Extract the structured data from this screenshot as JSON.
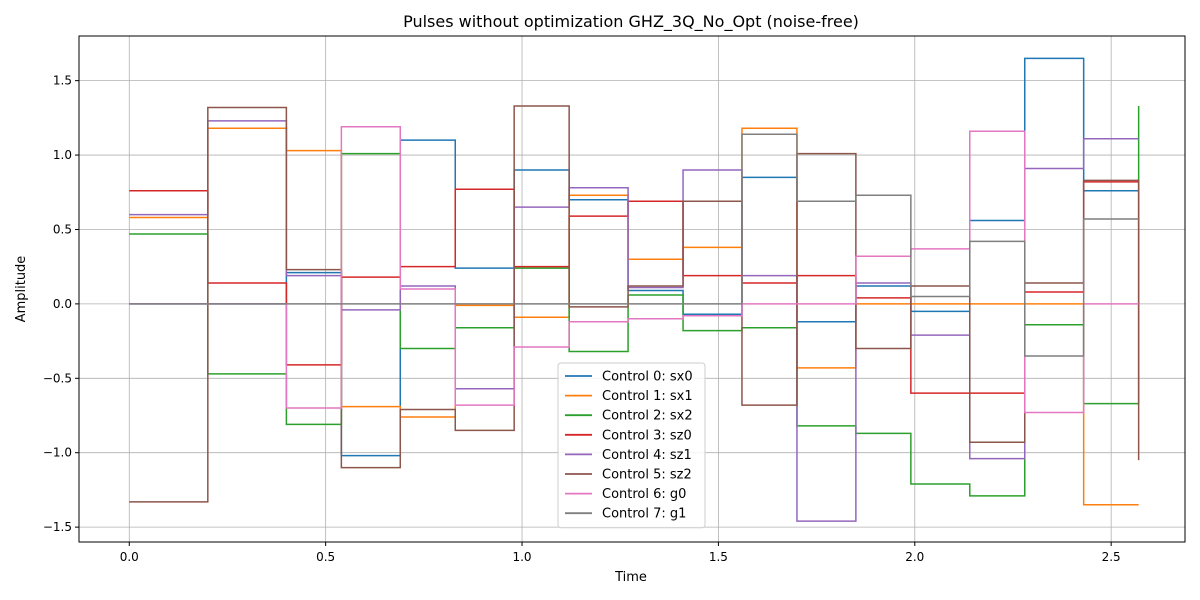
{
  "chart_data": {
    "type": "line",
    "step": "post",
    "title": "Pulses without optimization GHZ_3Q_No_Opt (noise-free)",
    "xlabel": "Time",
    "ylabel": "Amplitude",
    "xlim": [
      -0.128,
      2.688
    ],
    "ylim": [
      -1.6,
      1.8
    ],
    "xticks": [
      0.0,
      0.5,
      1.0,
      1.5,
      2.0,
      2.5
    ],
    "xtick_labels": [
      "0.0",
      "0.5",
      "1.0",
      "1.5",
      "2.0",
      "2.5"
    ],
    "yticks": [
      -1.5,
      -1.0,
      -0.5,
      0.0,
      0.5,
      1.0,
      1.5
    ],
    "ytick_labels": [
      "−1.5",
      "−1.0",
      "−0.5",
      "0.0",
      "0.5",
      "1.0",
      "1.5"
    ],
    "grid": true,
    "legend_position": "bottom-center",
    "x": [
      0.0,
      0.2,
      0.4,
      0.54,
      0.69,
      0.83,
      0.98,
      1.12,
      1.27,
      1.41,
      1.56,
      1.7,
      1.85,
      1.99,
      2.14,
      2.28,
      2.43,
      2.57
    ],
    "series": [
      {
        "name": "Control 0: sx0",
        "color": "#1f77b4",
        "values": [
          0.0,
          0.0,
          0.21,
          -1.02,
          1.1,
          0.24,
          0.9,
          0.7,
          0.09,
          -0.07,
          0.85,
          -0.12,
          0.12,
          -0.05,
          0.56,
          1.65,
          0.76,
          0.76
        ]
      },
      {
        "name": "Control 1: sx1",
        "color": "#ff7f0e",
        "values": [
          0.58,
          1.18,
          1.03,
          -0.69,
          -0.76,
          -0.01,
          -0.09,
          0.73,
          0.3,
          0.38,
          1.18,
          -0.43,
          0.0,
          0.0,
          0.0,
          0.0,
          -1.35,
          -1.35
        ]
      },
      {
        "name": "Control 2: sx2",
        "color": "#2ca02c",
        "values": [
          0.47,
          -0.47,
          -0.81,
          1.01,
          -0.3,
          -0.16,
          0.24,
          -0.32,
          0.06,
          -0.18,
          -0.16,
          -0.82,
          -0.87,
          -1.21,
          -1.29,
          -0.14,
          -0.67,
          1.33
        ]
      },
      {
        "name": "Control 3: sz0",
        "color": "#d62728",
        "values": [
          0.76,
          0.14,
          -0.41,
          0.18,
          0.25,
          0.77,
          0.25,
          0.59,
          0.69,
          0.19,
          0.14,
          0.19,
          0.04,
          -0.6,
          -0.6,
          0.08,
          0.82,
          0.82
        ]
      },
      {
        "name": "Control 4: sz1",
        "color": "#9467bd",
        "values": [
          0.6,
          1.23,
          0.19,
          -0.04,
          0.12,
          -0.57,
          0.65,
          0.78,
          0.11,
          0.9,
          0.19,
          -1.46,
          0.14,
          -0.21,
          -1.04,
          0.91,
          1.11,
          1.11
        ]
      },
      {
        "name": "Control 5: sz2",
        "color": "#8c564b",
        "values": [
          -1.33,
          1.32,
          0.23,
          -1.1,
          -0.71,
          -0.85,
          1.33,
          -0.02,
          0.12,
          0.69,
          -0.68,
          1.01,
          -0.3,
          0.12,
          -0.93,
          0.14,
          0.83,
          -1.05
        ]
      },
      {
        "name": "Control 6: g0",
        "color": "#e377c2",
        "values": [
          0.0,
          0.0,
          -0.7,
          1.19,
          0.1,
          -0.68,
          -0.29,
          -0.12,
          -0.1,
          -0.08,
          0.0,
          0.0,
          0.32,
          0.37,
          1.16,
          -0.73,
          0.0,
          0.0
        ]
      },
      {
        "name": "Control 7: g1",
        "color": "#7f7f7f",
        "values": [
          0.0,
          0.0,
          0.0,
          0.0,
          0.0,
          0.0,
          0.0,
          0.0,
          0.0,
          0.0,
          1.14,
          0.69,
          0.73,
          0.05,
          0.42,
          -0.35,
          0.57,
          0.57
        ]
      }
    ]
  }
}
